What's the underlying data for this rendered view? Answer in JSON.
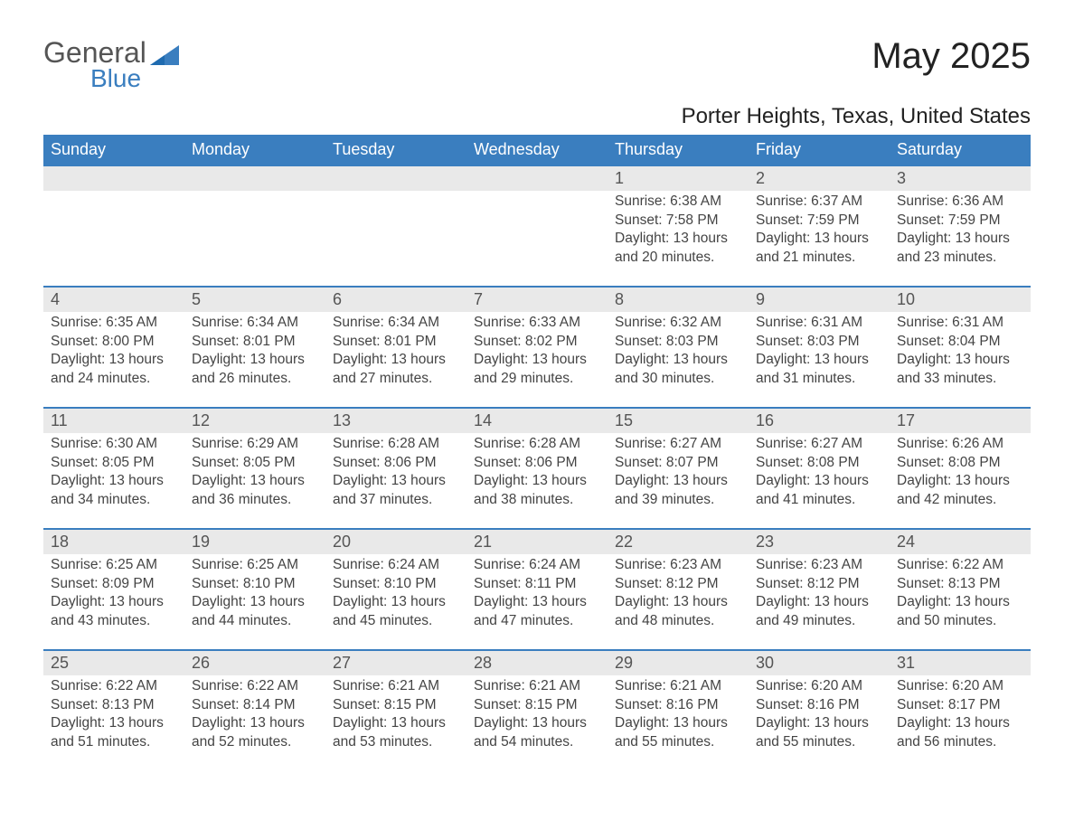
{
  "logo": {
    "main": "General",
    "sub": "Blue"
  },
  "title": "May 2025",
  "subtitle": "Porter Heights, Texas, United States",
  "colors": {
    "brand_blue": "#3a7ebf",
    "header_row_bg": "#e9e9e9",
    "text_dark": "#333333",
    "white": "#ffffff"
  },
  "day_headers": [
    "Sunday",
    "Monday",
    "Tuesday",
    "Wednesday",
    "Thursday",
    "Friday",
    "Saturday"
  ],
  "weeks": [
    [
      {
        "num": "",
        "sunrise": "",
        "sunset": "",
        "daylight": ""
      },
      {
        "num": "",
        "sunrise": "",
        "sunset": "",
        "daylight": ""
      },
      {
        "num": "",
        "sunrise": "",
        "sunset": "",
        "daylight": ""
      },
      {
        "num": "",
        "sunrise": "",
        "sunset": "",
        "daylight": ""
      },
      {
        "num": "1",
        "sunrise": "Sunrise: 6:38 AM",
        "sunset": "Sunset: 7:58 PM",
        "daylight": "Daylight: 13 hours and 20 minutes."
      },
      {
        "num": "2",
        "sunrise": "Sunrise: 6:37 AM",
        "sunset": "Sunset: 7:59 PM",
        "daylight": "Daylight: 13 hours and 21 minutes."
      },
      {
        "num": "3",
        "sunrise": "Sunrise: 6:36 AM",
        "sunset": "Sunset: 7:59 PM",
        "daylight": "Daylight: 13 hours and 23 minutes."
      }
    ],
    [
      {
        "num": "4",
        "sunrise": "Sunrise: 6:35 AM",
        "sunset": "Sunset: 8:00 PM",
        "daylight": "Daylight: 13 hours and 24 minutes."
      },
      {
        "num": "5",
        "sunrise": "Sunrise: 6:34 AM",
        "sunset": "Sunset: 8:01 PM",
        "daylight": "Daylight: 13 hours and 26 minutes."
      },
      {
        "num": "6",
        "sunrise": "Sunrise: 6:34 AM",
        "sunset": "Sunset: 8:01 PM",
        "daylight": "Daylight: 13 hours and 27 minutes."
      },
      {
        "num": "7",
        "sunrise": "Sunrise: 6:33 AM",
        "sunset": "Sunset: 8:02 PM",
        "daylight": "Daylight: 13 hours and 29 minutes."
      },
      {
        "num": "8",
        "sunrise": "Sunrise: 6:32 AM",
        "sunset": "Sunset: 8:03 PM",
        "daylight": "Daylight: 13 hours and 30 minutes."
      },
      {
        "num": "9",
        "sunrise": "Sunrise: 6:31 AM",
        "sunset": "Sunset: 8:03 PM",
        "daylight": "Daylight: 13 hours and 31 minutes."
      },
      {
        "num": "10",
        "sunrise": "Sunrise: 6:31 AM",
        "sunset": "Sunset: 8:04 PM",
        "daylight": "Daylight: 13 hours and 33 minutes."
      }
    ],
    [
      {
        "num": "11",
        "sunrise": "Sunrise: 6:30 AM",
        "sunset": "Sunset: 8:05 PM",
        "daylight": "Daylight: 13 hours and 34 minutes."
      },
      {
        "num": "12",
        "sunrise": "Sunrise: 6:29 AM",
        "sunset": "Sunset: 8:05 PM",
        "daylight": "Daylight: 13 hours and 36 minutes."
      },
      {
        "num": "13",
        "sunrise": "Sunrise: 6:28 AM",
        "sunset": "Sunset: 8:06 PM",
        "daylight": "Daylight: 13 hours and 37 minutes."
      },
      {
        "num": "14",
        "sunrise": "Sunrise: 6:28 AM",
        "sunset": "Sunset: 8:06 PM",
        "daylight": "Daylight: 13 hours and 38 minutes."
      },
      {
        "num": "15",
        "sunrise": "Sunrise: 6:27 AM",
        "sunset": "Sunset: 8:07 PM",
        "daylight": "Daylight: 13 hours and 39 minutes."
      },
      {
        "num": "16",
        "sunrise": "Sunrise: 6:27 AM",
        "sunset": "Sunset: 8:08 PM",
        "daylight": "Daylight: 13 hours and 41 minutes."
      },
      {
        "num": "17",
        "sunrise": "Sunrise: 6:26 AM",
        "sunset": "Sunset: 8:08 PM",
        "daylight": "Daylight: 13 hours and 42 minutes."
      }
    ],
    [
      {
        "num": "18",
        "sunrise": "Sunrise: 6:25 AM",
        "sunset": "Sunset: 8:09 PM",
        "daylight": "Daylight: 13 hours and 43 minutes."
      },
      {
        "num": "19",
        "sunrise": "Sunrise: 6:25 AM",
        "sunset": "Sunset: 8:10 PM",
        "daylight": "Daylight: 13 hours and 44 minutes."
      },
      {
        "num": "20",
        "sunrise": "Sunrise: 6:24 AM",
        "sunset": "Sunset: 8:10 PM",
        "daylight": "Daylight: 13 hours and 45 minutes."
      },
      {
        "num": "21",
        "sunrise": "Sunrise: 6:24 AM",
        "sunset": "Sunset: 8:11 PM",
        "daylight": "Daylight: 13 hours and 47 minutes."
      },
      {
        "num": "22",
        "sunrise": "Sunrise: 6:23 AM",
        "sunset": "Sunset: 8:12 PM",
        "daylight": "Daylight: 13 hours and 48 minutes."
      },
      {
        "num": "23",
        "sunrise": "Sunrise: 6:23 AM",
        "sunset": "Sunset: 8:12 PM",
        "daylight": "Daylight: 13 hours and 49 minutes."
      },
      {
        "num": "24",
        "sunrise": "Sunrise: 6:22 AM",
        "sunset": "Sunset: 8:13 PM",
        "daylight": "Daylight: 13 hours and 50 minutes."
      }
    ],
    [
      {
        "num": "25",
        "sunrise": "Sunrise: 6:22 AM",
        "sunset": "Sunset: 8:13 PM",
        "daylight": "Daylight: 13 hours and 51 minutes."
      },
      {
        "num": "26",
        "sunrise": "Sunrise: 6:22 AM",
        "sunset": "Sunset: 8:14 PM",
        "daylight": "Daylight: 13 hours and 52 minutes."
      },
      {
        "num": "27",
        "sunrise": "Sunrise: 6:21 AM",
        "sunset": "Sunset: 8:15 PM",
        "daylight": "Daylight: 13 hours and 53 minutes."
      },
      {
        "num": "28",
        "sunrise": "Sunrise: 6:21 AM",
        "sunset": "Sunset: 8:15 PM",
        "daylight": "Daylight: 13 hours and 54 minutes."
      },
      {
        "num": "29",
        "sunrise": "Sunrise: 6:21 AM",
        "sunset": "Sunset: 8:16 PM",
        "daylight": "Daylight: 13 hours and 55 minutes."
      },
      {
        "num": "30",
        "sunrise": "Sunrise: 6:20 AM",
        "sunset": "Sunset: 8:16 PM",
        "daylight": "Daylight: 13 hours and 55 minutes."
      },
      {
        "num": "31",
        "sunrise": "Sunrise: 6:20 AM",
        "sunset": "Sunset: 8:17 PM",
        "daylight": "Daylight: 13 hours and 56 minutes."
      }
    ]
  ]
}
